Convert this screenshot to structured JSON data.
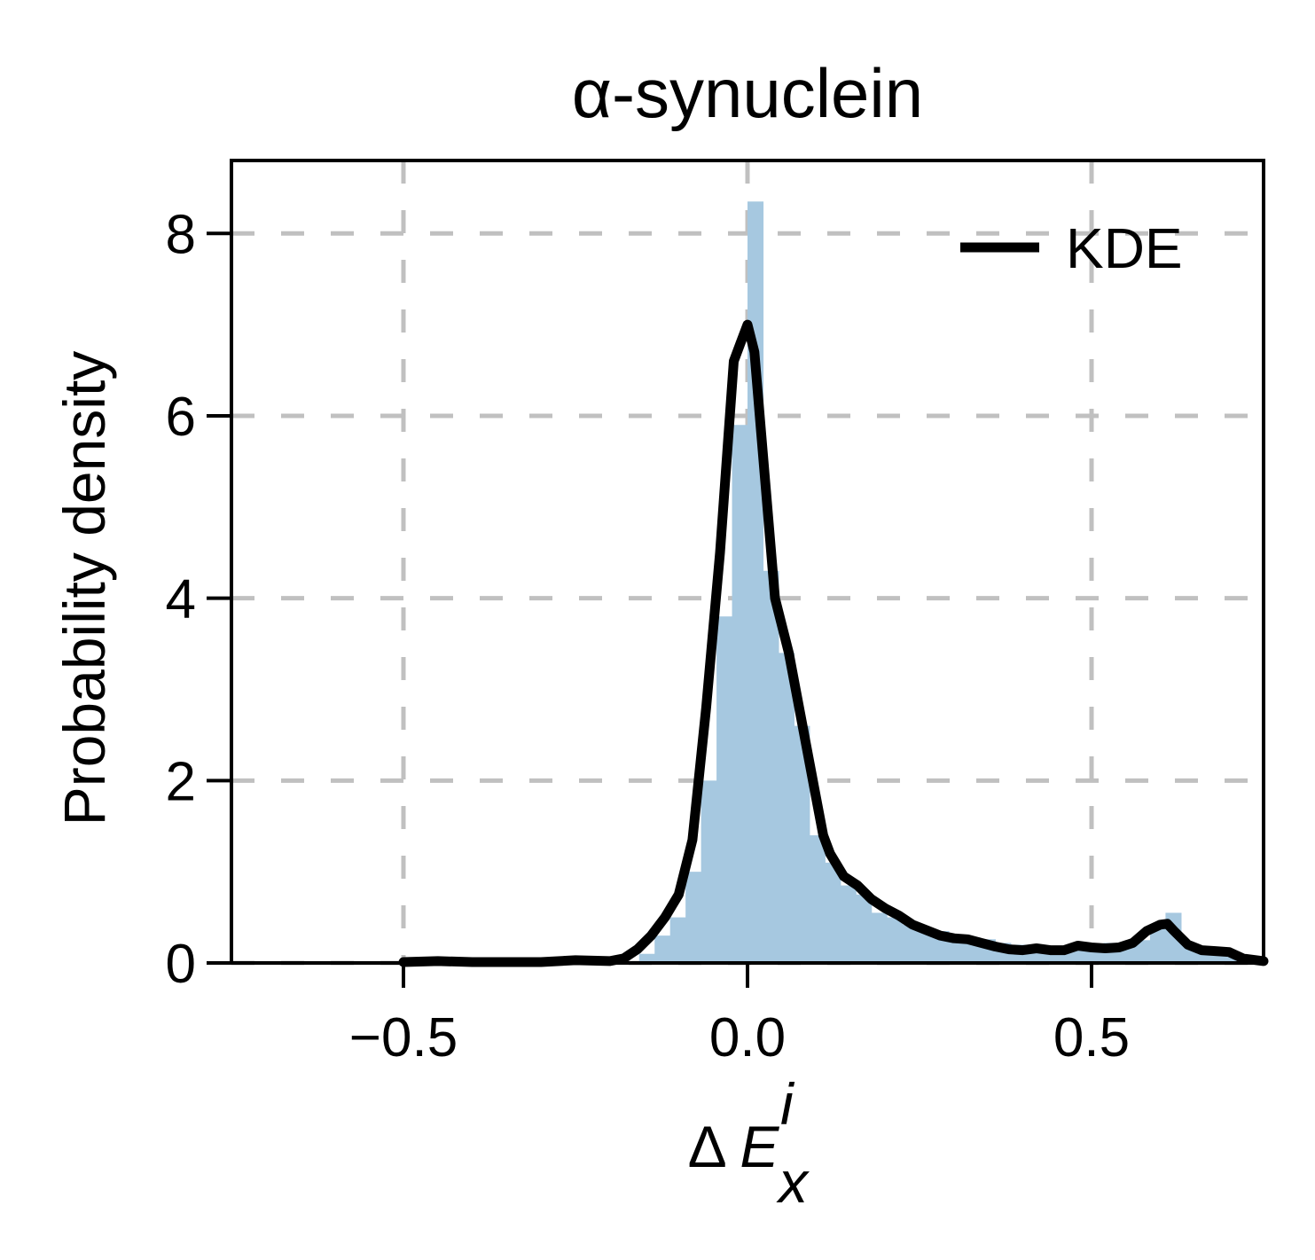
{
  "chart_data": {
    "type": "histogram",
    "title": "α-synuclein",
    "xlabel": {
      "symbol": "ΔE",
      "superscript": "i",
      "subscript": "x"
    },
    "ylabel": "Probability density",
    "xlim": [
      -0.75,
      0.75
    ],
    "ylim": [
      0,
      8.8
    ],
    "xticks": [
      -0.5,
      0.0,
      0.5
    ],
    "xtick_labels": [
      "−0.5",
      "0.0",
      "0.5"
    ],
    "yticks": [
      0,
      2,
      4,
      6,
      8
    ],
    "ytick_labels": [
      "0",
      "2",
      "4",
      "6",
      "8"
    ],
    "grid": true,
    "legend": {
      "position": "top-right",
      "entries": [
        "KDE"
      ]
    },
    "colors": {
      "histogram": "#a6c8e0",
      "kde": "#000000",
      "grid": "#c0c0c0",
      "axes": "#000000"
    },
    "histogram": {
      "bin_width": 0.0225,
      "bin_lefts": [
        -0.1575,
        -0.135,
        -0.1125,
        -0.09,
        -0.0675,
        -0.045,
        -0.0225,
        0.0,
        0.0225,
        0.045,
        0.0675,
        0.09,
        0.1125,
        0.135,
        0.1575,
        0.18,
        0.2025,
        0.225,
        0.2475,
        0.27,
        0.2925,
        0.315,
        0.3375,
        0.36,
        0.3825,
        0.405,
        0.4275,
        0.45,
        0.4725,
        0.495,
        0.5175,
        0.54,
        0.5625,
        0.585,
        0.6075,
        0.63,
        0.6525,
        0.675,
        0.6975,
        0.72
      ],
      "densities": [
        0.1,
        0.3,
        0.5,
        1.0,
        2.0,
        3.8,
        5.9,
        8.35,
        4.3,
        3.4,
        2.6,
        1.4,
        1.1,
        0.85,
        0.75,
        0.55,
        0.5,
        0.42,
        0.38,
        0.35,
        0.3,
        0.28,
        0.26,
        0.22,
        0.2,
        0.18,
        0.17,
        0.18,
        0.17,
        0.2,
        0.22,
        0.2,
        0.25,
        0.38,
        0.55,
        0.2,
        0.1,
        0.1,
        0.07,
        0.03
      ]
    },
    "kde": {
      "label": "KDE",
      "x": [
        -0.5,
        -0.45,
        -0.4,
        -0.35,
        -0.3,
        -0.25,
        -0.2,
        -0.18,
        -0.16,
        -0.14,
        -0.12,
        -0.1,
        -0.08,
        -0.06,
        -0.04,
        -0.02,
        -0.01,
        0.0,
        0.01,
        0.02,
        0.04,
        0.06,
        0.08,
        0.1,
        0.11,
        0.12,
        0.14,
        0.16,
        0.18,
        0.2,
        0.22,
        0.24,
        0.26,
        0.28,
        0.3,
        0.32,
        0.34,
        0.36,
        0.38,
        0.4,
        0.42,
        0.44,
        0.46,
        0.48,
        0.5,
        0.52,
        0.54,
        0.56,
        0.58,
        0.6,
        0.61,
        0.62,
        0.64,
        0.66,
        0.68,
        0.7,
        0.72,
        0.75
      ],
      "y": [
        0.01,
        0.02,
        0.01,
        0.01,
        0.01,
        0.03,
        0.02,
        0.05,
        0.15,
        0.3,
        0.5,
        0.75,
        1.35,
        2.8,
        4.5,
        6.6,
        6.8,
        7.0,
        6.7,
        5.8,
        4.0,
        3.4,
        2.6,
        1.8,
        1.4,
        1.2,
        0.95,
        0.85,
        0.7,
        0.6,
        0.52,
        0.42,
        0.36,
        0.3,
        0.27,
        0.26,
        0.22,
        0.18,
        0.15,
        0.14,
        0.16,
        0.14,
        0.14,
        0.19,
        0.17,
        0.16,
        0.17,
        0.22,
        0.35,
        0.42,
        0.43,
        0.35,
        0.2,
        0.14,
        0.13,
        0.12,
        0.05,
        0.02
      ]
    }
  }
}
